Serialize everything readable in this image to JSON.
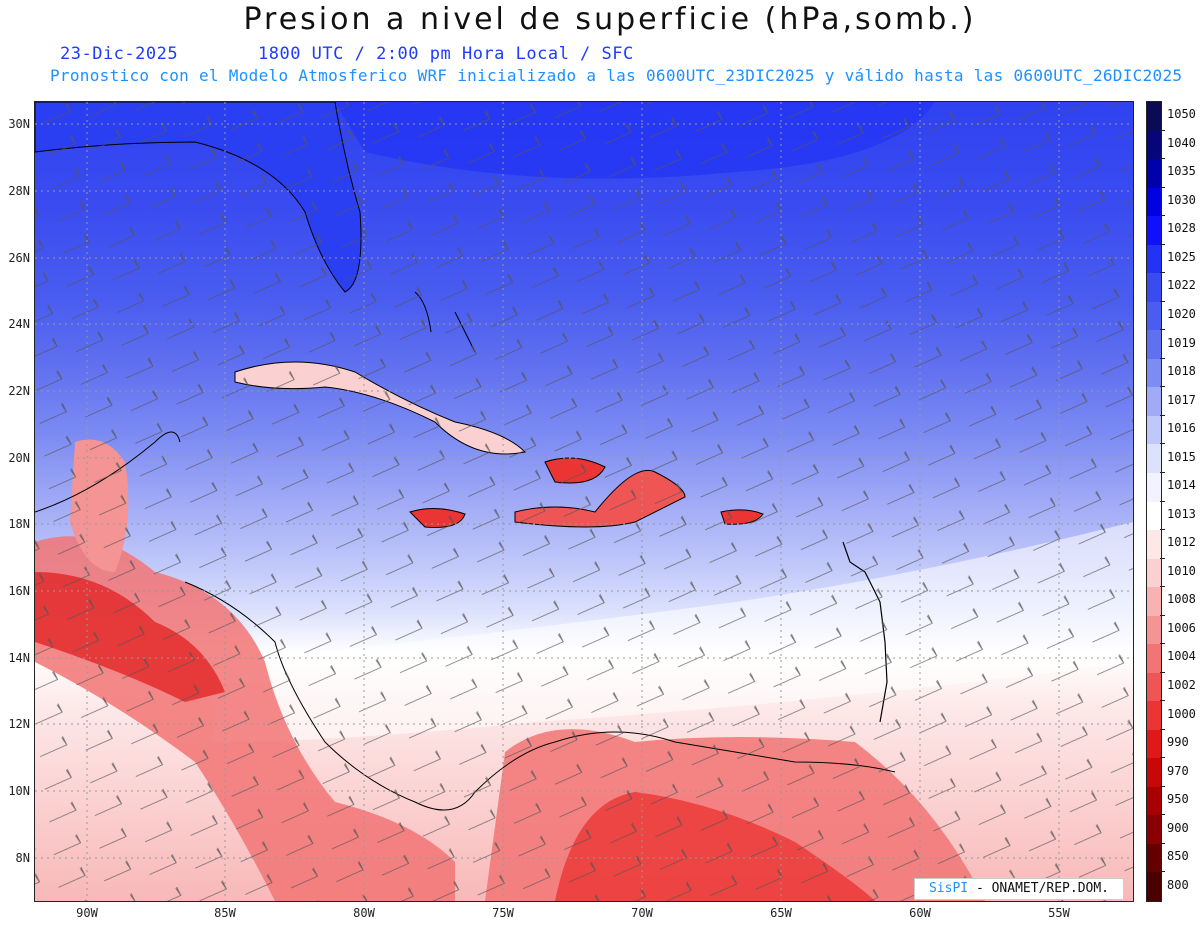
{
  "header": {
    "title": "Presion a nivel de superficie (hPa,somb.)",
    "date": "23-Dic-2025",
    "valid_time": "1800 UTC / 2:00 pm Hora Local / SFC",
    "description": "Pronostico con el Modelo Atmosferico WRF inicializado a las 0600UTC_23DIC2025 y válido hasta las  0600UTC_26DIC2025"
  },
  "map": {
    "latitude_labels": [
      "30N",
      "28N",
      "26N",
      "24N",
      "22N",
      "20N",
      "18N",
      "16N",
      "14N",
      "12N",
      "10N",
      "8N"
    ],
    "longitude_labels": [
      "90W",
      "85W",
      "80W",
      "75W",
      "70W",
      "65W",
      "60W",
      "55W"
    ],
    "graticule": "dotted"
  },
  "colorbar": {
    "labels": [
      "1050",
      "1040",
      "1035",
      "1030",
      "1028",
      "1025",
      "1022",
      "1020",
      "1019",
      "1018",
      "1017",
      "1016",
      "1015",
      "1014",
      "1013",
      "1012",
      "1010",
      "1008",
      "1006",
      "1004",
      "1002",
      "1000",
      "990",
      "970",
      "950",
      "900",
      "850",
      "800"
    ],
    "colors": [
      "#0a0a55",
      "#06067a",
      "#0000aa",
      "#0000e0",
      "#1010ff",
      "#2233f5",
      "#3a4cf0",
      "#4a5df0",
      "#6070f0",
      "#7d8cf3",
      "#a0aaf6",
      "#c0c8fa",
      "#dde2fc",
      "#f2f3fe",
      "#ffffff",
      "#fde8e8",
      "#fbd0d0",
      "#f8b2b2",
      "#f59494",
      "#f27474",
      "#ef5555",
      "#eb3535",
      "#e01818",
      "#c80808",
      "#a80000",
      "#880000",
      "#640000",
      "#4a0000"
    ]
  },
  "credit": {
    "brand": "SisPI",
    "text": "- ONAMET/REP.DOM."
  }
}
